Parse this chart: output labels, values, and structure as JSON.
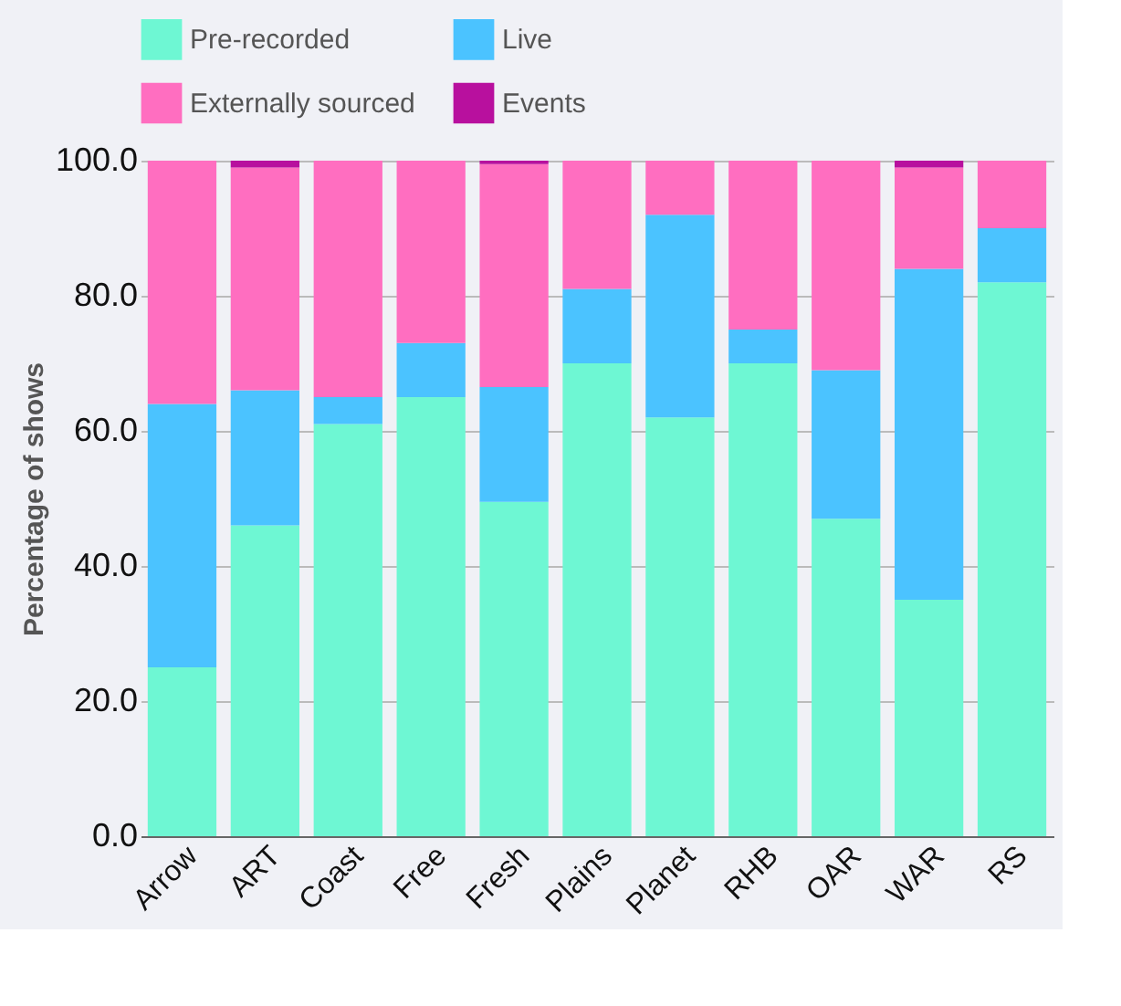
{
  "chart_data": {
    "type": "bar",
    "stacked": true,
    "ylabel": "Percentage of shows",
    "categories": [
      "Arrow",
      "ART",
      "Coast",
      "Free",
      "Fresh",
      "Plains",
      "Planet",
      "RHB",
      "OAR",
      "WAR",
      "RS"
    ],
    "series": [
      {
        "name": "Pre-recorded",
        "color": "#6ef7d3",
        "values": [
          25,
          46,
          61,
          65,
          49.5,
          70,
          62,
          70,
          47,
          35,
          82
        ]
      },
      {
        "name": "Live",
        "color": "#4bc3ff",
        "values": [
          39,
          20,
          4,
          8,
          17,
          11,
          30,
          5,
          22,
          49,
          8
        ]
      },
      {
        "name": "Externally sourced",
        "color": "#ff6ec0",
        "values": [
          36,
          33,
          35,
          27,
          33,
          19,
          8,
          25,
          31,
          15,
          10
        ]
      },
      {
        "name": "Events",
        "color": "#b8109e",
        "values": [
          0,
          1,
          0,
          0,
          0.5,
          0,
          0,
          0,
          0,
          1,
          0
        ]
      }
    ],
    "ylim": [
      0,
      100
    ],
    "yticks": [
      {
        "value": 0,
        "label": "0.0"
      },
      {
        "value": 20,
        "label": "20.0"
      },
      {
        "value": 40,
        "label": "40.0"
      },
      {
        "value": 60,
        "label": "60.0"
      },
      {
        "value": 80,
        "label": "80.0"
      },
      {
        "value": 100,
        "label": "100.0"
      }
    ],
    "grid": "y",
    "legend": "top"
  }
}
